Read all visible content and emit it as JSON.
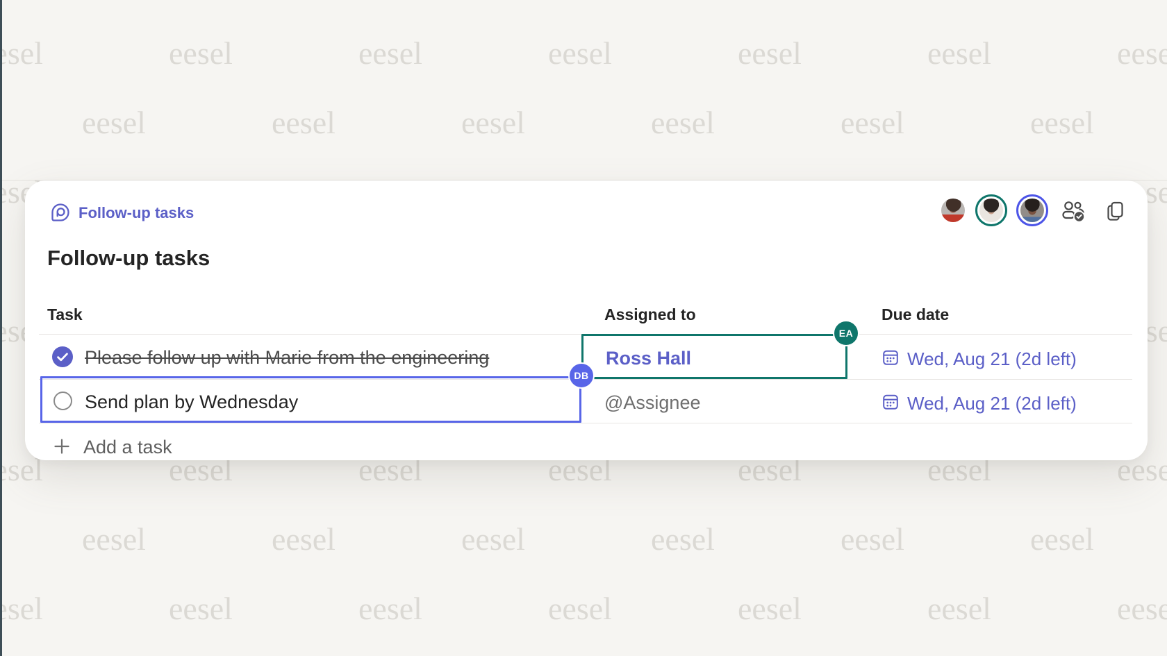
{
  "watermark": {
    "text": "eesel"
  },
  "card": {
    "header": {
      "component_label": "Follow-up tasks"
    },
    "presence": {
      "avatars": [
        {
          "name": "collaborator-1",
          "ring_color": "none"
        },
        {
          "name": "collaborator-2",
          "ring_color": "#0f766b"
        },
        {
          "name": "collaborator-3",
          "ring_color": "#4d55e8"
        }
      ]
    },
    "title": "Follow-up tasks",
    "table": {
      "columns": [
        "Task",
        "Assigned to",
        "Due date"
      ],
      "rows": [
        {
          "completed": true,
          "task": "Please follow up with Marie from the engineering",
          "assignee": "Ross Hall",
          "due": "Wed, Aug 21 (2d left)"
        },
        {
          "completed": false,
          "task": "Send plan by Wednesday",
          "assignee": "@Assignee",
          "due": "Wed, Aug 21 (2d left)"
        }
      ],
      "add_label": "Add a task"
    },
    "selections": [
      {
        "user_initials": "EA",
        "color": "#0f766b",
        "target": "assignee-cell-row-1"
      },
      {
        "user_initials": "DB",
        "color": "#5865e8",
        "target": "task-cell-row-2"
      }
    ],
    "accent_color": "#5b5fc7"
  }
}
